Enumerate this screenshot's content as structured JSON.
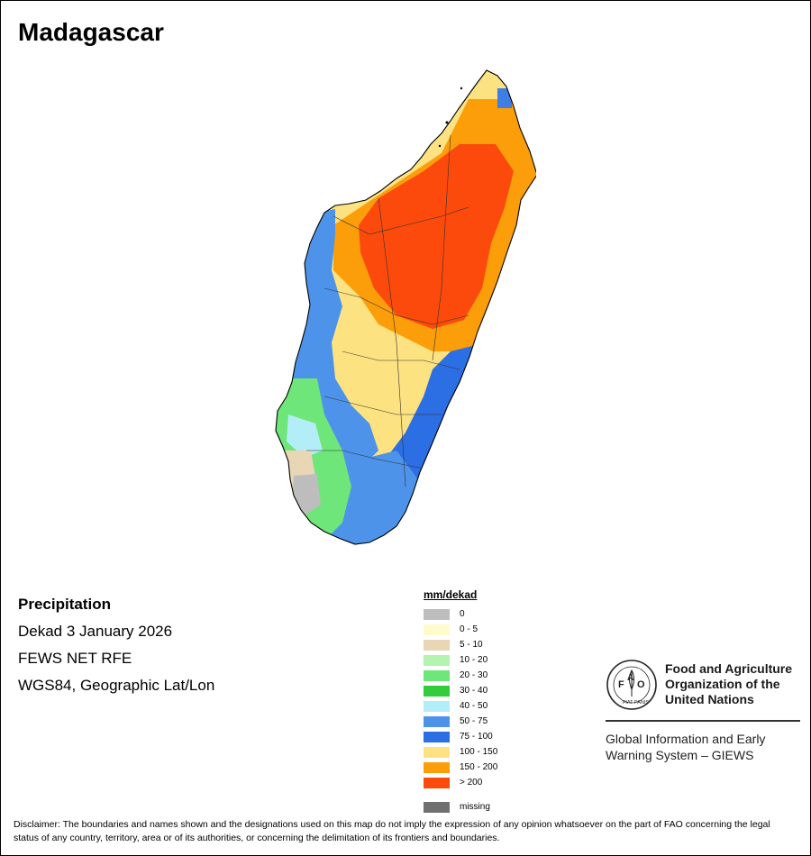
{
  "title": "Madagascar",
  "info": {
    "variable": "Precipitation",
    "period": "Dekad 3 January 2026",
    "source": "FEWS NET RFE",
    "projection": "WGS84, Geographic Lat/Lon"
  },
  "legend": {
    "title": "mm/dekad",
    "items": [
      {
        "label": "0",
        "color": "#bdbdbd"
      },
      {
        "label": "0 - 5",
        "color": "#fffccb"
      },
      {
        "label": "5 - 10",
        "color": "#e9d6b5"
      },
      {
        "label": "10 - 20",
        "color": "#b5f3b0"
      },
      {
        "label": "20 - 30",
        "color": "#6ee67a"
      },
      {
        "label": "30 - 40",
        "color": "#33cc3a"
      },
      {
        "label": "40 - 50",
        "color": "#b3edf7"
      },
      {
        "label": "50 - 75",
        "color": "#4d93ea"
      },
      {
        "label": "75 - 100",
        "color": "#2c6ee3"
      },
      {
        "label": "100 - 150",
        "color": "#fde281"
      },
      {
        "label": "150 - 200",
        "color": "#fb9e0a"
      },
      {
        "label": "> 200",
        "color": "#fb4a0c"
      }
    ],
    "missing": "missing",
    "missing_color": "#707070"
  },
  "fao": {
    "motto": "FIAT PANIS",
    "name_lines": [
      "Food and Agriculture",
      "Organization of the",
      "United Nations"
    ],
    "giews_lines": [
      "Global Information and Early",
      "Warning System – GIEWS"
    ]
  },
  "disclaimer": "Disclaimer: The boundaries and names shown and the designations used on this map do not imply the expression of any opinion whatsoever on the part of FAO concerning the legal status of any country, territory, area or of its authorities, or concerning the delimitation of its frontiers and boundaries."
}
